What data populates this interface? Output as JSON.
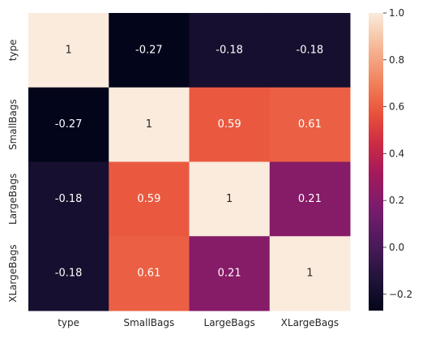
{
  "chart_data": {
    "type": "heatmap",
    "rows": [
      "type",
      "SmallBags",
      "LargeBags",
      "XLargeBags"
    ],
    "columns": [
      "type",
      "SmallBags",
      "LargeBags",
      "XLargeBags"
    ],
    "values": [
      [
        1,
        -0.27,
        -0.18,
        -0.18
      ],
      [
        -0.27,
        1,
        0.59,
        0.61
      ],
      [
        -0.18,
        0.59,
        1,
        0.21
      ],
      [
        -0.18,
        0.61,
        0.21,
        1
      ]
    ],
    "value_labels": [
      [
        "1",
        "-0.27",
        "-0.18",
        "-0.18"
      ],
      [
        "-0.27",
        "1",
        "0.59",
        "0.61"
      ],
      [
        "-0.18",
        "0.59",
        "1",
        "0.21"
      ],
      [
        "-0.18",
        "0.61",
        "0.21",
        "1"
      ]
    ],
    "colorbar": {
      "range": [
        -0.27,
        1.0
      ],
      "ticks": [
        -0.2,
        0.0,
        0.2,
        0.4,
        0.6,
        0.8,
        1.0
      ],
      "tick_labels": [
        "−0.2",
        "0.0",
        "0.2",
        "0.4",
        "0.6",
        "0.8",
        "1.0"
      ],
      "colormap": "rocket"
    },
    "title": "",
    "xlabel": "",
    "ylabel": "",
    "grid": false
  }
}
